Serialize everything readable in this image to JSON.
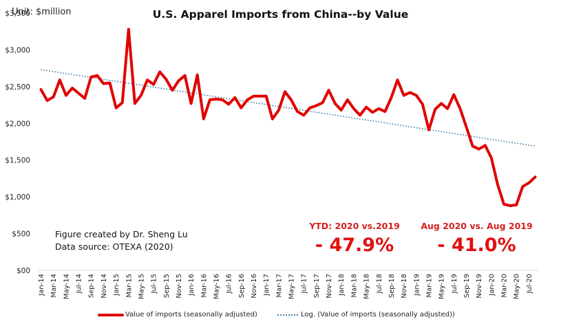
{
  "unit_label": "Unit: $million",
  "annotations": {
    "credit_line1": "Figure created by Dr. Sheng Lu",
    "credit_line2": "Data source: OTEXA (2020)",
    "ytd_label": "YTD: 2020  vs.2019",
    "ytd_value": "- 47.9%",
    "aug_label": "Aug 2020  vs. Aug 2019",
    "aug_value": "- 41.0%"
  },
  "colors": {
    "series_line": "#e00000",
    "trend_line": "#3d7ea6",
    "annotation_red": "#e01010"
  },
  "chart_data": {
    "type": "line",
    "title": "U.S. Apparel Imports from China--by Value",
    "xlabel": "",
    "ylabel": "",
    "ylim": [
      0,
      3500
    ],
    "yticks": [
      0,
      500,
      1000,
      1500,
      2000,
      2500,
      3000,
      3500
    ],
    "ytick_labels": [
      "$00",
      "$500",
      "$1,000",
      "$1,500",
      "$2,000",
      "$2,500",
      "$3,000",
      "$3,500"
    ],
    "grid": false,
    "legend_position": "bottom",
    "x": [
      "Jan-14",
      "Feb-14",
      "Mar-14",
      "Apr-14",
      "May-14",
      "Jun-14",
      "Jul-14",
      "Aug-14",
      "Sep-14",
      "Oct-14",
      "Nov-14",
      "Dec-14",
      "Jan-15",
      "Feb-15",
      "Mar-15",
      "Apr-15",
      "May-15",
      "Jun-15",
      "Jul-15",
      "Aug-15",
      "Sep-15",
      "Oct-15",
      "Nov-15",
      "Dec-15",
      "Jan-16",
      "Feb-16",
      "Mar-16",
      "Apr-16",
      "May-16",
      "Jun-16",
      "Jul-16",
      "Aug-16",
      "Sep-16",
      "Oct-16",
      "Nov-16",
      "Dec-16",
      "Jan-17",
      "Feb-17",
      "Mar-17",
      "Apr-17",
      "May-17",
      "Jun-17",
      "Jul-17",
      "Aug-17",
      "Sep-17",
      "Oct-17",
      "Nov-17",
      "Dec-17",
      "Jan-18",
      "Feb-18",
      "Mar-18",
      "Apr-18",
      "May-18",
      "Jun-18",
      "Jul-18",
      "Aug-18",
      "Sep-18",
      "Oct-18",
      "Nov-18",
      "Dec-18",
      "Jan-19",
      "Feb-19",
      "Mar-19",
      "Apr-19",
      "May-19",
      "Jun-19",
      "Jul-19",
      "Aug-19",
      "Sep-19",
      "Oct-19",
      "Nov-19",
      "Dec-19",
      "Jan-20",
      "Feb-20",
      "Mar-20",
      "Apr-20",
      "May-20",
      "Jun-20",
      "Jul-20",
      "Aug-20"
    ],
    "xtick_labels": [
      "Jan-14",
      "Mar-14",
      "May-14",
      "Jul-14",
      "Sep-14",
      "Nov-14",
      "Jan-15",
      "Mar-15",
      "May-15",
      "Jul-15",
      "Sep-15",
      "Nov-15",
      "Jan-16",
      "Mar-16",
      "May-16",
      "Jul-16",
      "Sep-16",
      "Nov-16",
      "Jan-17",
      "Mar-17",
      "May-17",
      "Jul-17",
      "Sep-17",
      "Nov-17",
      "Jan-18",
      "Mar-18",
      "May-18",
      "Jul-18",
      "Sep-18",
      "Nov-18",
      "Jan-19",
      "Mar-19",
      "May-19",
      "Jul-19",
      "Sep-19",
      "Nov-19",
      "Jan-20",
      "Mar-20",
      "May-20",
      "Jul-20"
    ],
    "series": [
      {
        "name": "Value of imports (seasonally adjusted)",
        "style": "solid",
        "values": [
          2460,
          2310,
          2360,
          2590,
          2380,
          2480,
          2410,
          2340,
          2630,
          2650,
          2540,
          2550,
          2210,
          2280,
          3280,
          2270,
          2380,
          2590,
          2530,
          2700,
          2600,
          2450,
          2580,
          2650,
          2270,
          2660,
          2060,
          2320,
          2330,
          2320,
          2260,
          2350,
          2210,
          2320,
          2370,
          2370,
          2370,
          2060,
          2180,
          2430,
          2320,
          2160,
          2110,
          2210,
          2240,
          2280,
          2450,
          2270,
          2180,
          2320,
          2200,
          2110,
          2220,
          2150,
          2200,
          2160,
          2350,
          2590,
          2380,
          2420,
          2380,
          2260,
          1910,
          2190,
          2270,
          2200,
          2390,
          2200,
          1950,
          1690,
          1650,
          1700,
          1530,
          1170,
          900,
          880,
          890,
          1140,
          1190,
          1270
        ]
      },
      {
        "name": "Log. (Value of imports (seasonally adjusted))",
        "style": "dotted",
        "type": "trendline",
        "start_value": 2730,
        "end_value": 1690
      }
    ]
  }
}
